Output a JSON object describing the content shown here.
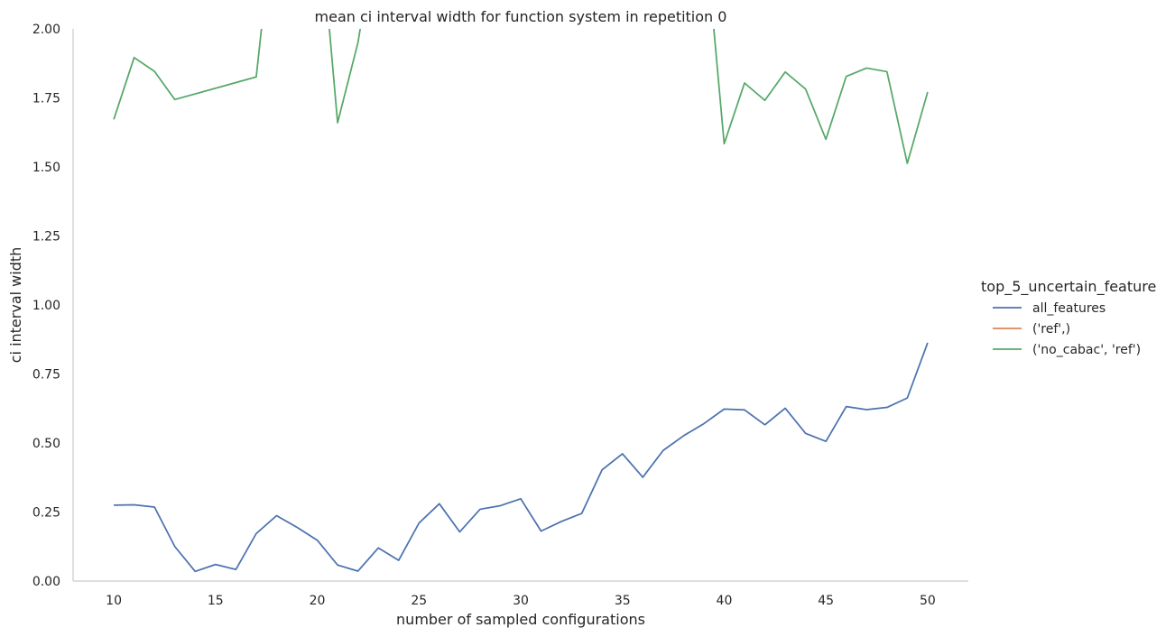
{
  "chart_data": {
    "type": "line",
    "title": "mean ci interval width for function system in repetition 0",
    "xlabel": "number of sampled configurations",
    "ylabel": "ci interval width",
    "xlim": [
      8,
      52
    ],
    "ylim": [
      0,
      2.0
    ],
    "xticks": [
      10,
      15,
      20,
      25,
      30,
      35,
      40,
      45,
      50
    ],
    "yticks": [
      0.0,
      0.25,
      0.5,
      0.75,
      1.0,
      1.25,
      1.5,
      1.75,
      2.0
    ],
    "ytick_labels": [
      "0.00",
      "0.25",
      "0.50",
      "0.75",
      "1.00",
      "1.25",
      "1.50",
      "1.75",
      "2.00"
    ],
    "grid": false,
    "legend": {
      "title": "top_5_uncertain_feature",
      "placement": "right"
    },
    "series": [
      {
        "name": "all_features",
        "color": "#4c72b0",
        "x": [
          10,
          11,
          12,
          13,
          14,
          15,
          16,
          17,
          18,
          19,
          20,
          21,
          22,
          23,
          24,
          25,
          26,
          27,
          28,
          29,
          30,
          31,
          32,
          33,
          34,
          35,
          36,
          37,
          38,
          39,
          40,
          41,
          42,
          43,
          44,
          45,
          46,
          47,
          48,
          49,
          50
        ],
        "y": [
          0.275,
          0.276,
          0.268,
          0.125,
          0.035,
          0.06,
          0.042,
          0.172,
          0.237,
          0.195,
          0.148,
          0.058,
          0.036,
          0.12,
          0.075,
          0.21,
          0.28,
          0.178,
          0.26,
          0.273,
          0.298,
          0.181,
          0.216,
          0.245,
          0.403,
          0.461,
          0.376,
          0.473,
          0.526,
          0.57,
          0.623,
          0.62,
          0.566,
          0.626,
          0.535,
          0.506,
          0.632,
          0.621,
          0.629,
          0.663,
          0.863
        ]
      },
      {
        "name": "('ref',)",
        "color": "#dd8452",
        "x": [],
        "y": []
      },
      {
        "name": "('no_cabac', 'ref')",
        "color": "#55a868",
        "x": [
          10,
          11,
          12,
          13,
          17,
          18,
          20,
          21,
          22,
          23,
          39,
          40,
          41,
          42,
          43,
          44,
          45,
          46,
          47,
          48,
          49,
          50
        ],
        "y": [
          1.672,
          1.896,
          1.846,
          1.744,
          1.826,
          2.5,
          2.5,
          1.66,
          1.95,
          2.4,
          2.4,
          1.584,
          1.804,
          1.741,
          1.844,
          1.782,
          1.6,
          1.828,
          1.858,
          1.845,
          1.513,
          1.771
        ]
      }
    ]
  }
}
